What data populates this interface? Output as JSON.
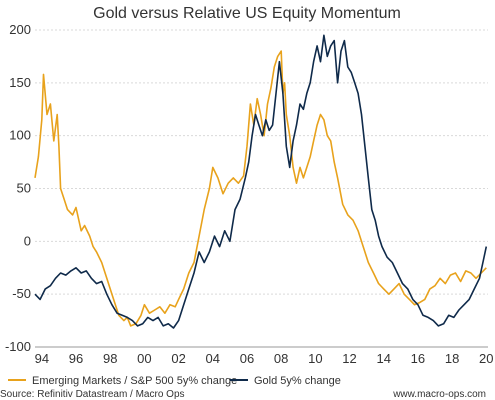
{
  "chart_data": {
    "type": "line",
    "title": "Gold versus Relative US Equity Momentum",
    "xlabel": "",
    "ylabel": "",
    "xlim": [
      1993.6,
      2020.1
    ],
    "ylim": [
      -100,
      200
    ],
    "y_ticks": [
      -100,
      -50,
      0,
      50,
      100,
      150,
      200
    ],
    "y_tick_labels": [
      "-100",
      "-50",
      "0",
      "50",
      "100",
      "150",
      "200"
    ],
    "x_ticks": [
      1994,
      1996,
      1998,
      2000,
      2002,
      2004,
      2006,
      2008,
      2010,
      2012,
      2014,
      2016,
      2018,
      2020
    ],
    "x_tick_labels": [
      "94",
      "96",
      "98",
      "00",
      "02",
      "04",
      "06",
      "08",
      "10",
      "12",
      "14",
      "16",
      "18",
      "20"
    ],
    "grid": "horizontal dashed",
    "legend_position": "bottom",
    "series": [
      {
        "name": "Emerging Markets / S&P 500 5y% change",
        "color": "#e8a21c",
        "x": [
          1993.6,
          1993.8,
          1994.0,
          1994.1,
          1994.3,
          1994.5,
          1994.7,
          1994.9,
          1995.0,
          1995.1,
          1995.3,
          1995.5,
          1995.8,
          1996.0,
          1996.3,
          1996.5,
          1996.8,
          1997.0,
          1997.2,
          1997.5,
          1997.8,
          1998.0,
          1998.2,
          1998.5,
          1998.8,
          1999.0,
          1999.2,
          1999.5,
          1999.8,
          2000.0,
          2000.3,
          2000.6,
          2000.9,
          2001.2,
          2001.5,
          2001.8,
          2002.0,
          2002.3,
          2002.6,
          2002.9,
          2003.2,
          2003.5,
          2003.8,
          2004.0,
          2004.3,
          2004.6,
          2004.9,
          2005.2,
          2005.5,
          2005.8,
          2006.0,
          2006.2,
          2006.4,
          2006.6,
          2006.8,
          2007.0,
          2007.2,
          2007.4,
          2007.6,
          2007.8,
          2008.0,
          2008.1,
          2008.2,
          2008.3,
          2008.5,
          2008.7,
          2008.9,
          2009.1,
          2009.3,
          2009.5,
          2009.7,
          2009.9,
          2010.1,
          2010.3,
          2010.5,
          2010.7,
          2010.9,
          2011.1,
          2011.3,
          2011.6,
          2011.9,
          2012.2,
          2012.5,
          2012.8,
          2013.1,
          2013.4,
          2013.7,
          2014.0,
          2014.3,
          2014.6,
          2014.9,
          2015.2,
          2015.5,
          2015.8,
          2016.1,
          2016.4,
          2016.7,
          2017.0,
          2017.3,
          2017.6,
          2017.9,
          2018.2,
          2018.5,
          2018.8,
          2019.1,
          2019.4,
          2019.7,
          2020.0
        ],
        "values": [
          60,
          80,
          115,
          158,
          120,
          130,
          95,
          120,
          90,
          50,
          40,
          30,
          25,
          32,
          10,
          15,
          5,
          -5,
          -10,
          -20,
          -35,
          -45,
          -55,
          -70,
          -75,
          -72,
          -80,
          -78,
          -70,
          -60,
          -68,
          -65,
          -62,
          -68,
          -60,
          -62,
          -55,
          -45,
          -30,
          -20,
          5,
          30,
          50,
          70,
          60,
          45,
          55,
          60,
          55,
          62,
          90,
          130,
          110,
          135,
          120,
          100,
          130,
          145,
          165,
          175,
          180,
          140,
          150,
          120,
          100,
          70,
          55,
          70,
          60,
          70,
          80,
          95,
          110,
          120,
          115,
          100,
          95,
          75,
          60,
          35,
          25,
          20,
          10,
          -5,
          -20,
          -30,
          -40,
          -45,
          -50,
          -45,
          -40,
          -50,
          -55,
          -60,
          -58,
          -55,
          -45,
          -42,
          -35,
          -40,
          -32,
          -30,
          -38,
          -28,
          -30,
          -35,
          -30,
          -25
        ]
      },
      {
        "name": "Gold 5y% change",
        "color": "#0f2a4a",
        "x": [
          1993.6,
          1993.9,
          1994.2,
          1994.5,
          1994.8,
          1995.1,
          1995.4,
          1995.7,
          1996.0,
          1996.3,
          1996.6,
          1996.9,
          1997.2,
          1997.5,
          1997.8,
          1998.1,
          1998.4,
          1998.7,
          1999.0,
          1999.3,
          1999.6,
          1999.9,
          2000.2,
          2000.5,
          2000.8,
          2001.1,
          2001.4,
          2001.7,
          2002.0,
          2002.3,
          2002.6,
          2002.9,
          2003.2,
          2003.5,
          2003.8,
          2004.1,
          2004.4,
          2004.7,
          2005.0,
          2005.3,
          2005.6,
          2005.9,
          2006.1,
          2006.3,
          2006.5,
          2006.7,
          2006.9,
          2007.1,
          2007.3,
          2007.5,
          2007.7,
          2007.9,
          2008.1,
          2008.3,
          2008.5,
          2008.7,
          2008.9,
          2009.1,
          2009.3,
          2009.5,
          2009.7,
          2009.9,
          2010.1,
          2010.3,
          2010.5,
          2010.7,
          2010.9,
          2011.1,
          2011.3,
          2011.5,
          2011.7,
          2011.9,
          2012.1,
          2012.3,
          2012.5,
          2012.7,
          2012.9,
          2013.1,
          2013.3,
          2013.5,
          2013.7,
          2013.9,
          2014.2,
          2014.5,
          2014.8,
          2015.1,
          2015.4,
          2015.7,
          2016.0,
          2016.3,
          2016.6,
          2016.9,
          2017.2,
          2017.5,
          2017.8,
          2018.1,
          2018.4,
          2018.7,
          2019.0,
          2019.3,
          2019.6,
          2019.8,
          2020.0
        ],
        "values": [
          -50,
          -55,
          -45,
          -42,
          -35,
          -30,
          -32,
          -28,
          -25,
          -30,
          -28,
          -35,
          -40,
          -38,
          -50,
          -60,
          -68,
          -70,
          -72,
          -75,
          -80,
          -78,
          -72,
          -75,
          -72,
          -80,
          -78,
          -82,
          -75,
          -60,
          -45,
          -30,
          -10,
          -20,
          -10,
          5,
          -5,
          10,
          0,
          30,
          40,
          60,
          75,
          100,
          120,
          110,
          100,
          115,
          105,
          110,
          140,
          170,
          140,
          90,
          70,
          95,
          110,
          130,
          125,
          140,
          150,
          170,
          185,
          170,
          195,
          175,
          185,
          190,
          150,
          180,
          190,
          165,
          160,
          150,
          140,
          120,
          90,
          60,
          30,
          20,
          5,
          -5,
          -15,
          -20,
          -30,
          -40,
          -45,
          -55,
          -60,
          -70,
          -72,
          -75,
          -80,
          -78,
          -70,
          -72,
          -65,
          -60,
          -55,
          -45,
          -35,
          -20,
          -5
        ]
      }
    ]
  },
  "legend": {
    "items": [
      "Emerging Markets / S&P 500 5y% change",
      "Gold 5y% change"
    ]
  },
  "footer": {
    "source": "Source: Refinitiv Datastream / Macro Ops",
    "website": "www.macro-ops.com"
  },
  "colors": {
    "series1": "#e8a21c",
    "series2": "#0f2a4a",
    "grid": "#d9d9d9"
  }
}
